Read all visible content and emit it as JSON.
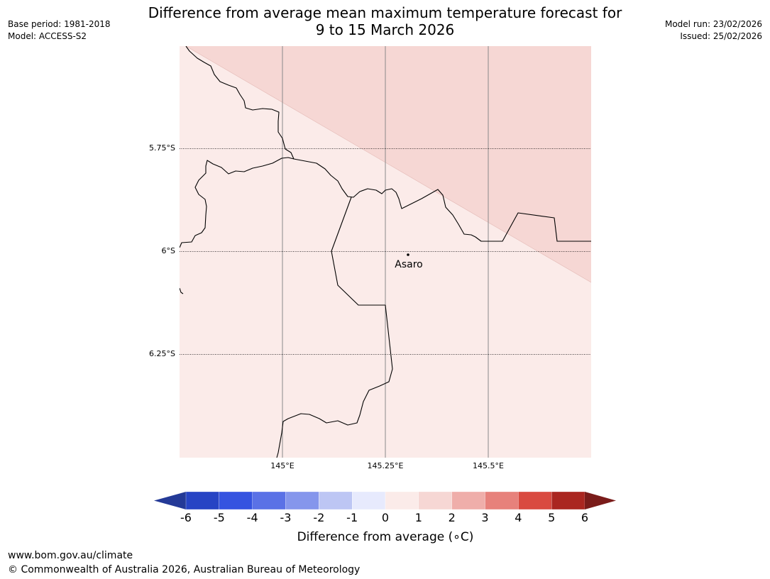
{
  "header": {
    "title_line1": "Difference from average mean maximum temperature forecast for",
    "title_line2": "9 to 15 March 2026",
    "base_period": "Base period: 1981-2018",
    "model": "Model: ACCESS-S2",
    "model_run": "Model run: 23/02/2026",
    "issued": "Issued: 25/02/2026"
  },
  "map": {
    "lat_labels": [
      "5.75°S",
      "6°S",
      "6.25°S"
    ],
    "lon_labels": [
      "145°E",
      "145.25°E",
      "145.5°E"
    ],
    "town": "Asaro",
    "regions": [
      {
        "category": "0 to 1",
        "color": "#fbebe9"
      },
      {
        "category": "1 to 2",
        "color": "#f6d7d4"
      }
    ]
  },
  "legend": {
    "label": "Difference from average (∘C)",
    "ticks": [
      "-6",
      "-5",
      "-4",
      "-3",
      "-2",
      "-1",
      "0",
      "1",
      "2",
      "3",
      "4",
      "5",
      "6"
    ],
    "colors": [
      "#243a97",
      "#2744c4",
      "#3553e0",
      "#5a71e6",
      "#8596ec",
      "#bdc6f4",
      "#e7eafd",
      "#fbebe9",
      "#f6d7d4",
      "#efaeaa",
      "#e7817b",
      "#d94a40",
      "#aa2620",
      "#7a1c1a"
    ]
  },
  "footer": {
    "url": "www.bom.gov.au/climate",
    "copyright": "© Commonwealth of Australia 2026, Australian Bureau of Meteorology"
  }
}
